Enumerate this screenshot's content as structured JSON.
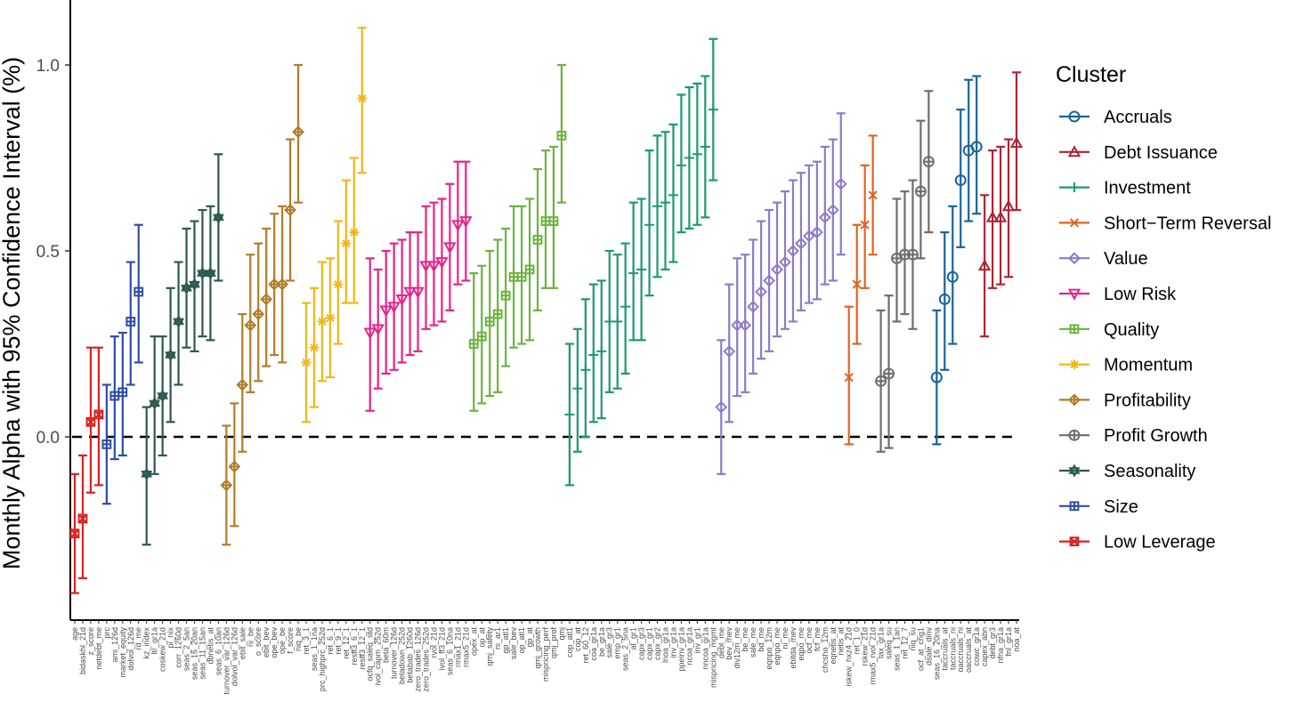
{
  "chart_data": {
    "type": "scatter",
    "ylabel": "Monthly Alpha with 95% Confidence Interval (%)",
    "xlabel": "",
    "yticks": [
      0.0,
      0.5,
      1.0
    ],
    "ytick_labels": [
      "0.0",
      "0.5",
      "1.0"
    ],
    "ylim": [
      -0.48,
      1.17
    ],
    "reference_line": 0,
    "legend": {
      "title": "Cluster",
      "position": "right"
    },
    "series": [
      {
        "name": "Accruals",
        "color": "#17649a",
        "marker": "circle",
        "points": [
          {
            "label": "seas_16_20na",
            "y": 0.16,
            "lo": -0.02,
            "hi": 0.34
          },
          {
            "label": "taccruals_at",
            "y": 0.37,
            "lo": 0.18,
            "hi": 0.55
          },
          {
            "label": "taccruals_ni",
            "y": 0.43,
            "lo": 0.25,
            "hi": 0.62
          },
          {
            "label": "oaccruals_ni",
            "y": 0.69,
            "lo": 0.51,
            "hi": 0.88
          },
          {
            "label": "oaccruals_at",
            "y": 0.77,
            "lo": 0.58,
            "hi": 0.96
          },
          {
            "label": "cowc_gr1a",
            "y": 0.78,
            "lo": 0.6,
            "hi": 0.97
          }
        ]
      },
      {
        "name": "Debt Issuance",
        "color": "#ad2433",
        "marker": "triangle",
        "points": [
          {
            "label": "capex_abn",
            "y": 0.46,
            "lo": 0.27,
            "hi": 0.65
          },
          {
            "label": "debt_gr3",
            "y": 0.59,
            "lo": 0.4,
            "hi": 0.77
          },
          {
            "label": "nfna_gr1a",
            "y": 0.59,
            "lo": 0.41,
            "hi": 0.78
          },
          {
            "label": "fnl_gr1a",
            "y": 0.62,
            "lo": 0.43,
            "hi": 0.8
          },
          {
            "label": "noa_at",
            "y": 0.79,
            "lo": 0.61,
            "hi": 0.98
          }
        ]
      },
      {
        "name": "Investment",
        "color": "#1c9a6e",
        "marker": "plus",
        "points": [
          {
            "label": "cop_atl1",
            "y": 0.06,
            "lo": -0.13,
            "hi": 0.25
          },
          {
            "label": "cop_at",
            "y": 0.13,
            "lo": -0.04,
            "hi": 0.29
          },
          {
            "label": "ret_60_12",
            "y": 0.18,
            "lo": 0.0,
            "hi": 0.37
          },
          {
            "label": "coa_gr1a",
            "y": 0.22,
            "lo": 0.04,
            "hi": 0.41
          },
          {
            "label": "be_gr1a",
            "y": 0.23,
            "lo": 0.05,
            "hi": 0.42
          },
          {
            "label": "sale_gr3",
            "y": 0.31,
            "lo": 0.12,
            "hi": 0.5
          },
          {
            "label": "emp_gr1",
            "y": 0.31,
            "lo": 0.13,
            "hi": 0.49
          },
          {
            "label": "seas_2_5na",
            "y": 0.35,
            "lo": 0.17,
            "hi": 0.52
          },
          {
            "label": "at_gr1",
            "y": 0.44,
            "lo": 0.26,
            "hi": 0.63
          },
          {
            "label": "capx_gr3",
            "y": 0.45,
            "lo": 0.26,
            "hi": 0.64
          },
          {
            "label": "capx_gr1",
            "y": 0.57,
            "lo": 0.38,
            "hi": 0.77
          },
          {
            "label": "capx_gr2",
            "y": 0.62,
            "lo": 0.43,
            "hi": 0.81
          },
          {
            "label": "lnoa_gr1a",
            "y": 0.63,
            "lo": 0.45,
            "hi": 0.82
          },
          {
            "label": "inv_gr1a",
            "y": 0.65,
            "lo": 0.47,
            "hi": 0.84
          },
          {
            "label": "ppeinv_gr1a",
            "y": 0.73,
            "lo": 0.55,
            "hi": 0.92
          },
          {
            "label": "ncoa_gr1a",
            "y": 0.75,
            "lo": 0.56,
            "hi": 0.94
          },
          {
            "label": "inv_gr1",
            "y": 0.76,
            "lo": 0.57,
            "hi": 0.95
          },
          {
            "label": "nncoa_gr1a",
            "y": 0.78,
            "lo": 0.59,
            "hi": 0.97
          },
          {
            "label": "mispricing_mgmt",
            "y": 0.88,
            "lo": 0.69,
            "hi": 1.07
          }
        ]
      },
      {
        "name": "Short−Term Reversal",
        "color": "#dd6424",
        "marker": "cross",
        "points": [
          {
            "label": "iskew_hxz4_21d",
            "y": 0.16,
            "lo": -0.02,
            "hi": 0.35
          },
          {
            "label": "ret_1_0",
            "y": 0.41,
            "lo": 0.25,
            "hi": 0.57
          },
          {
            "label": "rskew_21d",
            "y": 0.57,
            "lo": 0.4,
            "hi": 0.73
          },
          {
            "label": "rmax5_rvol_21d",
            "y": 0.65,
            "lo": 0.49,
            "hi": 0.81
          }
        ]
      },
      {
        "name": "Value",
        "color": "#8b7cc8",
        "marker": "diamond",
        "points": [
          {
            "label": "debt_me",
            "y": 0.08,
            "lo": -0.1,
            "hi": 0.26
          },
          {
            "label": "bev_mev",
            "y": 0.23,
            "lo": 0.04,
            "hi": 0.41
          },
          {
            "label": "div12m_me",
            "y": 0.3,
            "lo": 0.11,
            "hi": 0.48
          },
          {
            "label": "be_me",
            "y": 0.3,
            "lo": 0.12,
            "hi": 0.49
          },
          {
            "label": "sale_me",
            "y": 0.35,
            "lo": 0.17,
            "hi": 0.53
          },
          {
            "label": "bd_me",
            "y": 0.39,
            "lo": 0.21,
            "hi": 0.58
          },
          {
            "label": "eqnpo_12m",
            "y": 0.42,
            "lo": 0.23,
            "hi": 0.61
          },
          {
            "label": "eqnpo_me",
            "y": 0.45,
            "lo": 0.27,
            "hi": 0.63
          },
          {
            "label": "ni_me",
            "y": 0.47,
            "lo": 0.29,
            "hi": 0.66
          },
          {
            "label": "ebitda_mev",
            "y": 0.5,
            "lo": 0.31,
            "hi": 0.69
          },
          {
            "label": "eqpo_me",
            "y": 0.52,
            "lo": 0.34,
            "hi": 0.71
          },
          {
            "label": "ocf_me",
            "y": 0.54,
            "lo": 0.36,
            "hi": 0.73
          },
          {
            "label": "fcf_me",
            "y": 0.55,
            "lo": 0.37,
            "hi": 0.74
          },
          {
            "label": "chcsho_12m",
            "y": 0.59,
            "lo": 0.41,
            "hi": 0.78
          },
          {
            "label": "eqnetis_at",
            "y": 0.61,
            "lo": 0.42,
            "hi": 0.8
          },
          {
            "label": "netis_at",
            "y": 0.68,
            "lo": 0.49,
            "hi": 0.87
          }
        ]
      },
      {
        "name": "Low Risk",
        "color": "#e6238c",
        "marker": "triangle-down",
        "points": [
          {
            "label": "ocfq_saleq_std",
            "y": 0.28,
            "lo": 0.07,
            "hi": 0.48
          },
          {
            "label": "ivol_capm_252d",
            "y": 0.29,
            "lo": 0.13,
            "hi": 0.45
          },
          {
            "label": "beta_60m",
            "y": 0.34,
            "lo": 0.17,
            "hi": 0.5
          },
          {
            "label": "turnover_126d",
            "y": 0.35,
            "lo": 0.18,
            "hi": 0.52
          },
          {
            "label": "betadown_252d",
            "y": 0.37,
            "lo": 0.2,
            "hi": 0.53
          },
          {
            "label": "betabab_1260d",
            "y": 0.39,
            "lo": 0.22,
            "hi": 0.55
          },
          {
            "label": "zero_trades_126d",
            "y": 0.39,
            "lo": 0.23,
            "hi": 0.55
          },
          {
            "label": "zero_trades_252d",
            "y": 0.46,
            "lo": 0.29,
            "hi": 0.62
          },
          {
            "label": "rvol_21d",
            "y": 0.46,
            "lo": 0.3,
            "hi": 0.63
          },
          {
            "label": "ivol_ff3_21d",
            "y": 0.47,
            "lo": 0.31,
            "hi": 0.64
          },
          {
            "label": "seas_6_10na",
            "y": 0.51,
            "lo": 0.34,
            "hi": 0.68
          },
          {
            "label": "rmax1_21d",
            "y": 0.57,
            "lo": 0.41,
            "hi": 0.74
          },
          {
            "label": "rmax5_21d",
            "y": 0.58,
            "lo": 0.42,
            "hi": 0.74
          }
        ]
      },
      {
        "name": "Quality",
        "color": "#6cb33f",
        "marker": "square-plus",
        "points": [
          {
            "label": "opex_at",
            "y": 0.25,
            "lo": 0.07,
            "hi": 0.44
          },
          {
            "label": "op_at",
            "y": 0.27,
            "lo": 0.09,
            "hi": 0.46
          },
          {
            "label": "qmj_safety",
            "y": 0.31,
            "lo": 0.11,
            "hi": 0.5
          },
          {
            "label": "ni_ar1",
            "y": 0.33,
            "lo": 0.12,
            "hi": 0.53
          },
          {
            "label": "gp_atl1",
            "y": 0.38,
            "lo": 0.19,
            "hi": 0.56
          },
          {
            "label": "sale_bev",
            "y": 0.43,
            "lo": 0.24,
            "hi": 0.62
          },
          {
            "label": "op_atl1",
            "y": 0.43,
            "lo": 0.25,
            "hi": 0.62
          },
          {
            "label": "gp_at",
            "y": 0.45,
            "lo": 0.26,
            "hi": 0.64
          },
          {
            "label": "qmj_growth",
            "y": 0.53,
            "lo": 0.34,
            "hi": 0.72
          },
          {
            "label": "mispricing_perf",
            "y": 0.58,
            "lo": 0.4,
            "hi": 0.77
          },
          {
            "label": "qmj_prof",
            "y": 0.58,
            "lo": 0.4,
            "hi": 0.78
          },
          {
            "label": "qmj",
            "y": 0.81,
            "lo": 0.63,
            "hi": 1.0
          }
        ]
      },
      {
        "name": "Momentum",
        "color": "#f3b521",
        "marker": "asterisk",
        "points": [
          {
            "label": "ret_3_1",
            "y": 0.2,
            "lo": 0.04,
            "hi": 0.36
          },
          {
            "label": "seas_1_1na",
            "y": 0.24,
            "lo": 0.08,
            "hi": 0.4
          },
          {
            "label": "prc_highprc_252d",
            "y": 0.31,
            "lo": 0.15,
            "hi": 0.47
          },
          {
            "label": "ret_6_1",
            "y": 0.32,
            "lo": 0.16,
            "hi": 0.48
          },
          {
            "label": "ret_9_1",
            "y": 0.41,
            "lo": 0.25,
            "hi": 0.58
          },
          {
            "label": "ret_12_1",
            "y": 0.52,
            "lo": 0.36,
            "hi": 0.69
          },
          {
            "label": "resff3_6_1",
            "y": 0.55,
            "lo": 0.36,
            "hi": 0.75
          },
          {
            "label": "resff3_12_1",
            "y": 0.91,
            "lo": 0.71,
            "hi": 1.1
          }
        ]
      },
      {
        "name": "Profitability",
        "color": "#b07d2a",
        "marker": "diamond-plus",
        "points": [
          {
            "label": "turnover_var_126d",
            "y": -0.13,
            "lo": -0.29,
            "hi": 0.03
          },
          {
            "label": "dolvol_var_126d",
            "y": -0.08,
            "lo": -0.24,
            "hi": 0.09
          },
          {
            "label": "ebit_sale",
            "y": 0.14,
            "lo": -0.04,
            "hi": 0.33
          },
          {
            "label": "ni_be",
            "y": 0.3,
            "lo": 0.12,
            "hi": 0.49
          },
          {
            "label": "o_score",
            "y": 0.33,
            "lo": 0.15,
            "hi": 0.52
          },
          {
            "label": "ebit_bev",
            "y": 0.37,
            "lo": 0.19,
            "hi": 0.56
          },
          {
            "label": "ope_bev",
            "y": 0.41,
            "lo": 0.22,
            "hi": 0.6
          },
          {
            "label": "ope_be",
            "y": 0.41,
            "lo": 0.2,
            "hi": 0.62
          },
          {
            "label": "f_score",
            "y": 0.61,
            "lo": 0.42,
            "hi": 0.8
          },
          {
            "label": "niq_be",
            "y": 0.82,
            "lo": 0.63,
            "hi": 1.0
          }
        ]
      },
      {
        "name": "Profit Growth",
        "color": "#6e6e6e",
        "marker": "circle-plus",
        "points": [
          {
            "label": "tax_gr1a",
            "y": 0.15,
            "lo": -0.04,
            "hi": 0.34
          },
          {
            "label": "saleq_su",
            "y": 0.17,
            "lo": -0.03,
            "hi": 0.38
          },
          {
            "label": "seas_1_1an",
            "y": 0.48,
            "lo": 0.31,
            "hi": 0.64
          },
          {
            "label": "ret_12_7",
            "y": 0.49,
            "lo": 0.33,
            "hi": 0.66
          },
          {
            "label": "niq_su",
            "y": 0.49,
            "lo": 0.29,
            "hi": 0.69
          },
          {
            "label": "ocf_at_chg1",
            "y": 0.66,
            "lo": 0.48,
            "hi": 0.85
          },
          {
            "label": "dsale_dinv",
            "y": 0.74,
            "lo": 0.55,
            "hi": 0.93
          }
        ]
      },
      {
        "name": "Seasonality",
        "color": "#2c5a4d",
        "marker": "star",
        "points": [
          {
            "label": "kz_index",
            "y": -0.1,
            "lo": -0.29,
            "hi": 0.08
          },
          {
            "label": "ltr_gr1a",
            "y": 0.09,
            "lo": -0.1,
            "hi": 0.27
          },
          {
            "label": "coskew_21d",
            "y": 0.11,
            "lo": -0.05,
            "hi": 0.27
          },
          {
            "label": "pi_nix",
            "y": 0.22,
            "lo": 0.04,
            "hi": 0.4
          },
          {
            "label": "corr_1260d",
            "y": 0.31,
            "lo": 0.14,
            "hi": 0.47
          },
          {
            "label": "seas_2_5an",
            "y": 0.4,
            "lo": 0.24,
            "hi": 0.56
          },
          {
            "label": "seas_16_20an",
            "y": 0.41,
            "lo": 0.23,
            "hi": 0.58
          },
          {
            "label": "seas_11_15an",
            "y": 0.44,
            "lo": 0.27,
            "hi": 0.61
          },
          {
            "label": "dbnetis_at",
            "y": 0.44,
            "lo": 0.26,
            "hi": 0.62
          },
          {
            "label": "seas_6_10an",
            "y": 0.59,
            "lo": 0.42,
            "hi": 0.76
          }
        ]
      },
      {
        "name": "Size",
        "color": "#2f4ea3",
        "marker": "square-plus",
        "points": [
          {
            "label": "prc",
            "y": -0.02,
            "lo": -0.18,
            "hi": 0.14
          },
          {
            "label": "ami_126d",
            "y": 0.11,
            "lo": -0.06,
            "hi": 0.27
          },
          {
            "label": "market_equity",
            "y": 0.12,
            "lo": -0.05,
            "hi": 0.28
          },
          {
            "label": "dolvol_126d",
            "y": 0.31,
            "lo": 0.14,
            "hi": 0.47
          },
          {
            "label": "rd_me",
            "y": 0.39,
            "lo": 0.2,
            "hi": 0.57
          }
        ]
      },
      {
        "name": "Low Leverage",
        "color": "#d7231f",
        "marker": "square-cross",
        "points": [
          {
            "label": "age",
            "y": -0.26,
            "lo": -0.42,
            "hi": -0.1
          },
          {
            "label": "bidaskhl_21d",
            "y": -0.22,
            "lo": -0.38,
            "hi": -0.05
          },
          {
            "label": "z_score",
            "y": 0.04,
            "lo": -0.15,
            "hi": 0.24
          },
          {
            "label": "netdebt_me",
            "y": 0.06,
            "lo": -0.13,
            "hi": 0.24
          }
        ]
      }
    ],
    "order": [
      "Low Leverage",
      "Size",
      "Seasonality",
      "Profitability",
      "Momentum",
      "Low Risk",
      "Quality",
      "Investment",
      "Value",
      "Short−Term Reversal",
      "Profit Growth",
      "Accruals",
      "Debt Issuance"
    ],
    "legend_order": [
      "Accruals",
      "Debt Issuance",
      "Investment",
      "Short−Term Reversal",
      "Value",
      "Low Risk",
      "Quality",
      "Momentum",
      "Profitability",
      "Profit Growth",
      "Seasonality",
      "Size",
      "Low Leverage"
    ]
  }
}
